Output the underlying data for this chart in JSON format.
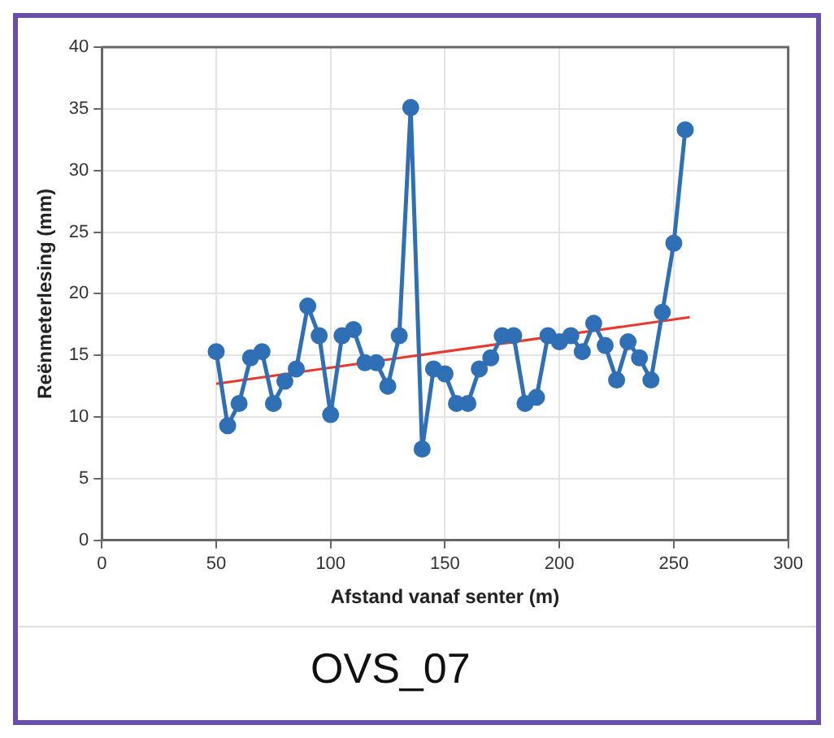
{
  "chart_data": {
    "type": "line",
    "title": "OVS_07",
    "xlabel": "Afstand vanaf senter (m)",
    "ylabel": "Reënmeterlesing (mm)",
    "xlim": [
      0,
      300
    ],
    "xticks": [
      0,
      50,
      100,
      150,
      200,
      250,
      300
    ],
    "ylim": [
      0,
      40
    ],
    "yticks": [
      0,
      5,
      10,
      15,
      20,
      25,
      30,
      35,
      40
    ],
    "grid": true,
    "marker": "circle",
    "legend": false,
    "series": [
      {
        "color": "#2e6fb5",
        "x": [
          50,
          55,
          60,
          65,
          70,
          75,
          80,
          85,
          90,
          95,
          100,
          105,
          110,
          115,
          120,
          125,
          130,
          135,
          140,
          145,
          150,
          155,
          160,
          165,
          170,
          175,
          180,
          185,
          190,
          195,
          200,
          205,
          210,
          215,
          220,
          225,
          230,
          235,
          240,
          245,
          250,
          255
        ],
        "values": [
          15.3,
          9.3,
          11.1,
          14.8,
          15.3,
          11.1,
          12.9,
          13.9,
          19.0,
          16.6,
          10.2,
          16.6,
          17.1,
          14.4,
          14.4,
          12.5,
          16.6,
          35.1,
          7.4,
          13.9,
          13.5,
          11.1,
          11.1,
          13.9,
          14.8,
          16.6,
          16.6,
          11.1,
          11.6,
          16.6,
          16.1,
          16.6,
          15.3,
          17.6,
          15.8,
          13.0,
          16.1,
          14.8,
          13.0,
          18.5,
          24.1,
          33.3
        ]
      },
      {
        "type": "line",
        "marker": "none",
        "color": "#e8392f",
        "x": [
          50,
          257
        ],
        "values": [
          12.7,
          18.1
        ]
      }
    ]
  }
}
